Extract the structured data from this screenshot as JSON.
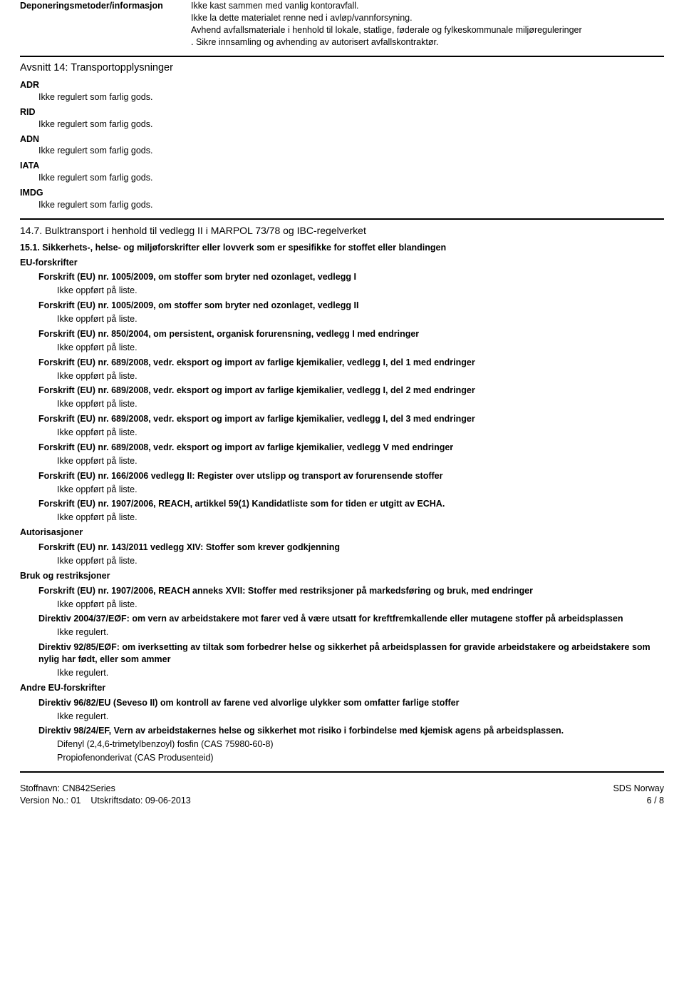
{
  "top": {
    "label": "Deponeringsmetoder/informasjon",
    "text": "Ikke kast sammen med vanlig kontoravfall.\nIkke la dette materialet renne ned i avløp/vannforsyning.\nAvhend avfallsmateriale i henhold til lokale, statlige, føderale og fylkeskommunale miljøreguleringer\n. Sikre innsamling og avhending av autorisert avfallskontraktør."
  },
  "section14": {
    "heading": "Avsnitt 14: Transportopplysninger",
    "items": [
      {
        "code": "ADR",
        "text": "Ikke regulert som farlig gods."
      },
      {
        "code": "RID",
        "text": "Ikke regulert som farlig gods."
      },
      {
        "code": "ADN",
        "text": "Ikke regulert som farlig gods."
      },
      {
        "code": "IATA",
        "text": "Ikke regulert som farlig gods."
      },
      {
        "code": "IMDG",
        "text": "Ikke regulert som farlig gods."
      }
    ],
    "sub147": "14.7. Bulktransport i henhold til vedlegg II i MARPOL 73/78 og IBC-regelverket"
  },
  "section15": {
    "heading": "15.1. Sikkerhets-, helse- og miljøforskrifter eller lovverk som er spesifikke for stoffet eller blandingen",
    "eu_label": "EU-forskrifter",
    "not_listed": "Ikke oppført på liste.",
    "not_regulated": "Ikke regulert.",
    "regs": [
      "Forskrift (EU) nr. 1005/2009, om stoffer som bryter ned ozonlaget, vedlegg I",
      "Forskrift (EU) nr. 1005/2009, om stoffer som bryter ned ozonlaget, vedlegg II",
      "Forskrift (EU) nr. 850/2004, om persistent, organisk forurensning, vedlegg I med endringer",
      "Forskrift (EU) nr. 689/2008, vedr. eksport og import av farlige kjemikalier, vedlegg I, del 1 med endringer",
      "Forskrift (EU) nr. 689/2008, vedr. eksport og import av farlige kjemikalier, vedlegg I, del 2 med endringer",
      "Forskrift (EU) nr. 689/2008, vedr. eksport og import av farlige kjemikalier, vedlegg I, del 3 med endringer",
      "Forskrift (EU) nr. 689/2008, vedr. eksport og import av farlige kjemikalier, vedlegg V med endringer",
      "Forskrift (EU) nr. 166/2006 vedlegg II: Register over utslipp og transport av forurensende stoffer",
      "Forskrift (EU) nr. 1907/2006, REACH, artikkel 59(1) Kandidatliste som for tiden er utgitt av ECHA."
    ],
    "auth_label": "Autorisasjoner",
    "auth_reg": "Forskrift (EU) nr. 143/2011 vedlegg XIV: Stoffer som krever godkjenning",
    "restrict_label": "Bruk og restriksjoner",
    "restrict_reg": "Forskrift (EU) nr. 1907/2006, REACH anneks XVII: Stoffer med restriksjoner på markedsføring og bruk, med endringer",
    "directive1": "Direktiv 2004/37/EØF: om vern av arbeidstakere mot farer ved å være utsatt for kreftfremkallende eller mutagene stoffer på arbeidsplassen",
    "directive2": "Direktiv 92/85/EØF: om iverksetting av tiltak som forbedrer helse og sikkerhet på arbeidsplassen for gravide arbeidstakere og arbeidstakere som nylig har født, eller som ammer",
    "other_eu_label": "Andre EU-forskrifter",
    "directive3": "Direktiv 96/82/EU (Seveso II) om kontroll av farene ved alvorlige ulykker som omfatter farlige stoffer",
    "directive4": "Direktiv 98/24/EF, Vern av arbeidstakernes helse og sikkerhet mot risiko i forbindelse med kjemisk agens på arbeidsplassen.",
    "chemicals": [
      "Difenyl (2,4,6-trimetylbenzoyl) fosfin (CAS 75980-60-8)",
      "Propiofenonderivat (CAS Produsenteid)"
    ]
  },
  "footer": {
    "name_label": "Stoffnavn:",
    "name_value": "CN842Series",
    "version_label": "Version No.:",
    "version_value": "01",
    "date_label": "Utskriftsdato:",
    "date_value": "09-06-2013",
    "country": "SDS Norway",
    "page": "6 / 8"
  }
}
